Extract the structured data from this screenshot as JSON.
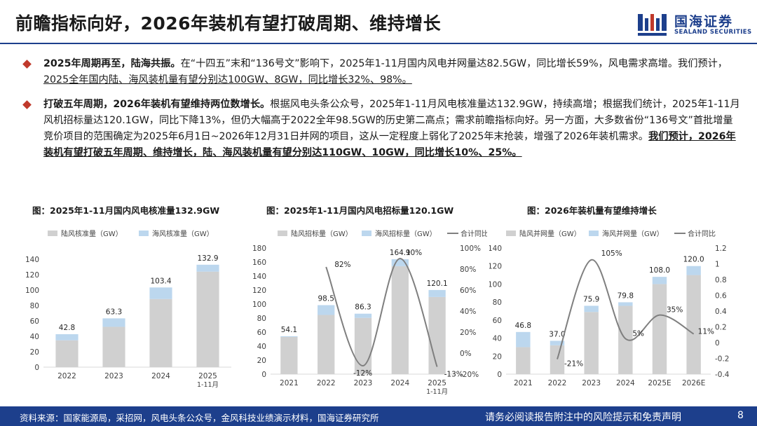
{
  "header": {
    "title": "前瞻指标向好，2026年装机有望打破周期、维持增长",
    "logo_cn": "国海证券",
    "logo_en": "SEALAND SECURITIES"
  },
  "bullets": [
    {
      "bold": "2025年周期再至，陆海共振。",
      "text": "在“十四五”末和“136号文”影响下，2025年1-11月国内风电并网量达82.5GW，同比增长59%，风电需求高增。我们预计，",
      "underline": "2025全年国内陆、海风装机量有望分别达100GW、8GW，同比增长32%、98%。"
    },
    {
      "bold": "打破五年周期，2026年装机有望维持两位数增长。",
      "text": "根据风电头条公众号，2025年1-11月风电核准量达132.9GW，持续高增；根据我们统计，2025年1-11月风机招标量达120.1GW，同比下降13%，但仍大幅高于2022全年98.5GW的历史第二高点；需求前瞻指标向好。另一方面，大多数省份“136号文”首批增量竞价项目的范围确定为2025年6月1日~2026年12月31日并网的项目，这从一定程度上弱化了2025年末抢装，增强了2026年装机需求。",
      "underline": "我们预计，2026年装机有望打破五年周期、维持增长，陆、海风装机量有望分别达110GW、10GW，同比增长10%、25%。"
    }
  ],
  "colors": {
    "onshore": "#d0d0d0",
    "offshore": "#bcd7ee",
    "line": "#7f7f7f",
    "brand": "#1d3f8c",
    "bullet": "#c0392b"
  },
  "chart_data": [
    {
      "type": "bar",
      "title": "图：2025年1-11月国内风电核准量132.9GW",
      "categories": [
        "2022",
        "2023",
        "2024",
        "2025\n1-11月"
      ],
      "series": [
        {
          "name": "陆风核准量（GW）",
          "values": [
            34.8,
            52.3,
            88.4,
            123.9
          ]
        },
        {
          "name": "海风核准量（GW）",
          "values": [
            8.0,
            11.0,
            15.0,
            9.0
          ]
        }
      ],
      "totals": [
        "42.8",
        "63.3",
        "103.4",
        "132.9"
      ],
      "ylim": [
        0,
        140
      ],
      "yticks": [
        "0",
        "20",
        "40",
        "60",
        "80",
        "100",
        "120",
        "140"
      ]
    },
    {
      "type": "bar",
      "title": "图：2025年1-11月国内风电招标量120.1GW",
      "categories": [
        "2021",
        "2022",
        "2023",
        "2024",
        "2025\n1-11月"
      ],
      "series": [
        {
          "name": "陆风招标量（GW）",
          "values": [
            53.0,
            84.5,
            80.3,
            154.1,
            110.1
          ]
        },
        {
          "name": "海风招标量（GW）",
          "values": [
            1.1,
            14.0,
            6.0,
            10.0,
            10.0
          ]
        }
      ],
      "totals": [
        "54.1",
        "98.5",
        "86.3",
        "164.1",
        "120.1"
      ],
      "line": {
        "name": "合计同比",
        "values": [
          null,
          82,
          -12,
          90,
          -13
        ],
        "labels": [
          "",
          "82%",
          "-12%",
          "90%",
          "-13%"
        ]
      },
      "ylim": [
        0,
        180
      ],
      "yticks": [
        "0",
        "20",
        "40",
        "60",
        "80",
        "100",
        "120",
        "140",
        "160",
        "180"
      ],
      "y2lim": [
        -20,
        100
      ],
      "y2ticks": [
        "-20%",
        "0%",
        "20%",
        "40%",
        "60%",
        "80%",
        "100%"
      ]
    },
    {
      "type": "bar",
      "title": "图：2026年装机量有望维持增长",
      "categories": [
        "2021",
        "2022",
        "2023",
        "2024",
        "2025E",
        "2026E"
      ],
      "series": [
        {
          "name": "陆风并网量（GW）",
          "values": [
            30.0,
            32.0,
            69.0,
            75.8,
            100.0,
            110.0
          ]
        },
        {
          "name": "海风并网量（GW）",
          "values": [
            16.8,
            5.0,
            6.9,
            4.0,
            8.0,
            10.0
          ]
        }
      ],
      "totals": [
        "46.8",
        "37.0",
        "75.9",
        "79.8",
        "108.0",
        "120.0"
      ],
      "line": {
        "name": "合计同比",
        "values": [
          null,
          -0.21,
          1.05,
          0.05,
          0.35,
          0.11
        ],
        "labels": [
          "",
          "-21%",
          "105%",
          "5%",
          "35%",
          "11%"
        ]
      },
      "ylim": [
        0,
        140
      ],
      "yticks": [
        "0",
        "20",
        "40",
        "60",
        "80",
        "100",
        "120",
        "140"
      ],
      "y2lim": [
        -0.4,
        1.2
      ],
      "y2ticks": [
        "-0.4",
        "-0.2",
        "0",
        "0.2",
        "0.4",
        "0.6",
        "0.8",
        "1",
        "1.2"
      ]
    }
  ],
  "footer": {
    "source": "资料来源：国家能源局，采招网，风电头条公众号，金风科技业绩演示材料，国海证券研究所",
    "disclaimer": "请务必阅读报告附注中的风险提示和免责声明",
    "page": "8"
  }
}
